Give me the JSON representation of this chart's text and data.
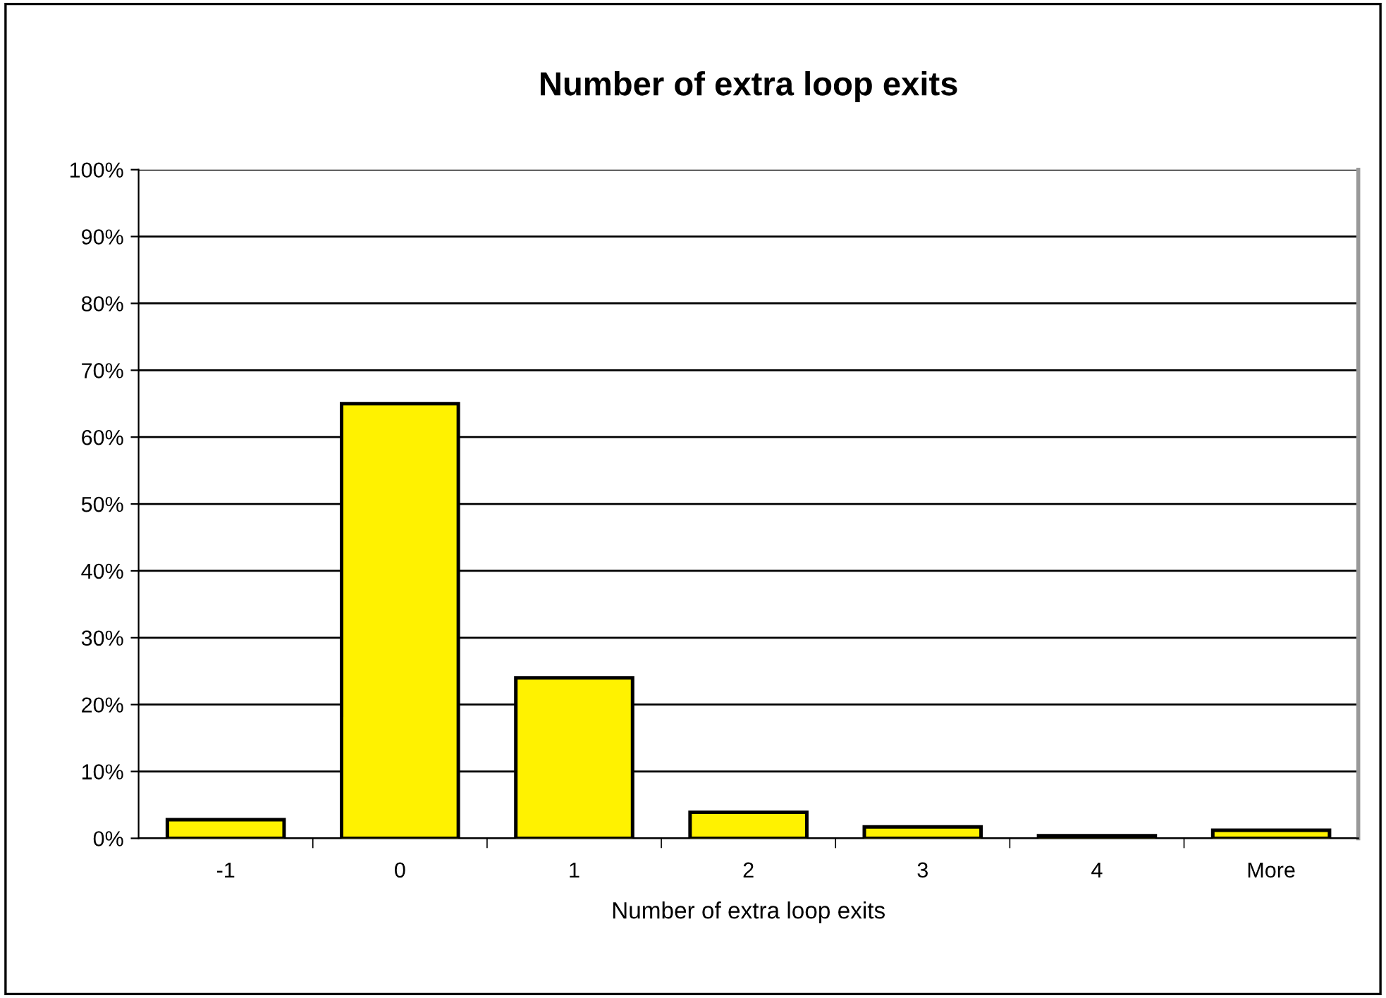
{
  "chart_data": {
    "type": "bar",
    "title": "Number of extra loop exits",
    "xlabel": "Number of extra loop exits",
    "categories": [
      "-1",
      "0",
      "1",
      "2",
      "3",
      "4",
      "More"
    ],
    "values": [
      2.8,
      65,
      24,
      3.9,
      1.7,
      0.4,
      1.2
    ],
    "color": "#fff200",
    "ylim": [
      0,
      100
    ],
    "yticks": [
      {
        "value": 0,
        "label": "0%"
      },
      {
        "value": 10,
        "label": "10%"
      },
      {
        "value": 20,
        "label": "20%"
      },
      {
        "value": 30,
        "label": "30%"
      },
      {
        "value": 40,
        "label": "40%"
      },
      {
        "value": 50,
        "label": "50%"
      },
      {
        "value": 60,
        "label": "60%"
      },
      {
        "value": 70,
        "label": "70%"
      },
      {
        "value": 80,
        "label": "80%"
      },
      {
        "value": 90,
        "label": "90%"
      },
      {
        "value": 100,
        "label": "100%"
      }
    ],
    "grid": "y",
    "legend": false
  }
}
